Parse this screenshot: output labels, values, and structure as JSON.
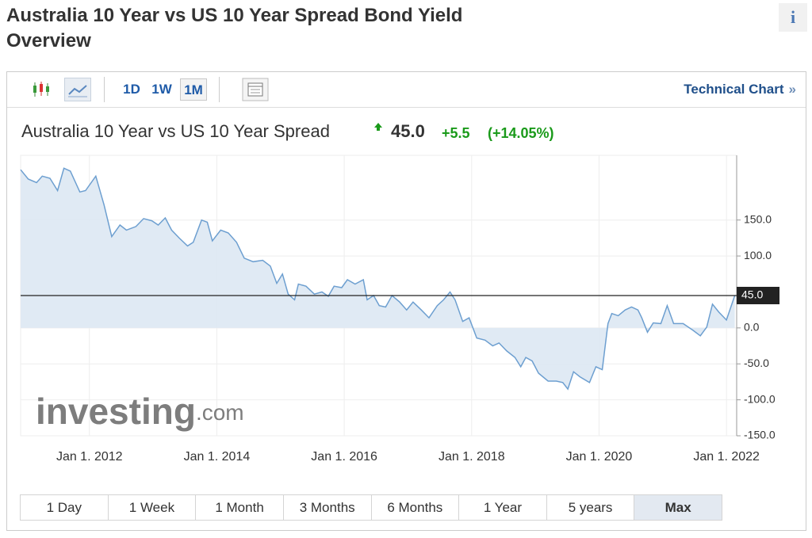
{
  "header": {
    "title": "Australia 10 Year vs US 10 Year Spread Bond Yield Overview",
    "info": "i"
  },
  "toolbar": {
    "intervals": [
      "1D",
      "1W",
      "1M"
    ],
    "active_interval": 2,
    "link": "Technical Chart",
    "link_arrow": "»"
  },
  "quote": {
    "name": "Australia 10 Year vs US 10 Year Spread",
    "price": "45.0",
    "change": "+5.5",
    "change_percent": "(+14.05%)"
  },
  "chart_data": {
    "type": "area",
    "x": [
      2010.92,
      2011.04,
      2011.17,
      2011.26,
      2011.38,
      2011.5,
      2011.6,
      2011.7,
      2011.85,
      2011.94,
      2012.1,
      2012.23,
      2012.35,
      2012.48,
      2012.58,
      2012.73,
      2012.85,
      2012.98,
      2013.08,
      2013.19,
      2013.29,
      2013.41,
      2013.54,
      2013.63,
      2013.76,
      2013.85,
      2013.93,
      2014.06,
      2014.18,
      2014.31,
      2014.43,
      2014.57,
      2014.72,
      2014.84,
      2014.94,
      2015.03,
      2015.12,
      2015.22,
      2015.28,
      2015.4,
      2015.53,
      2015.65,
      2015.75,
      2015.84,
      2015.96,
      2016.05,
      2016.17,
      2016.3,
      2016.36,
      2016.46,
      2016.55,
      2016.65,
      2016.75,
      2016.87,
      2016.98,
      2017.08,
      2017.21,
      2017.33,
      2017.46,
      2017.56,
      2017.66,
      2017.74,
      2017.86,
      2017.96,
      2018.08,
      2018.21,
      2018.33,
      2018.43,
      2018.55,
      2018.68,
      2018.77,
      2018.85,
      2018.95,
      2019.05,
      2019.2,
      2019.33,
      2019.43,
      2019.51,
      2019.6,
      2019.7,
      2019.85,
      2019.95,
      2020.05,
      2020.14,
      2020.2,
      2020.3,
      2020.41,
      2020.51,
      2020.61,
      2020.67,
      2020.76,
      2020.85,
      2020.97,
      2021.07,
      2021.17,
      2021.32,
      2021.47,
      2021.59,
      2021.69,
      2021.78,
      2021.88,
      2022.0,
      2022.13
    ],
    "values": [
      220,
      207,
      202,
      211,
      208,
      191,
      222,
      218,
      189,
      191,
      211,
      171,
      127,
      143,
      136,
      141,
      152,
      149,
      143,
      153,
      136,
      125,
      114,
      119,
      150,
      147,
      121,
      136,
      132,
      119,
      97,
      92,
      94,
      86,
      62,
      75,
      47,
      39,
      61,
      58,
      47,
      50,
      44,
      58,
      56,
      67,
      61,
      67,
      39,
      45,
      31,
      29,
      45,
      36,
      25,
      36,
      25,
      14,
      31,
      39,
      50,
      39,
      9,
      14,
      -14,
      -17,
      -25,
      -21,
      -32,
      -41,
      -54,
      -41,
      -46,
      -63,
      -74,
      -74,
      -76,
      -85,
      -61,
      -68,
      -76,
      -54,
      -58,
      6,
      20,
      17,
      25,
      29,
      25,
      14,
      -6,
      7,
      6,
      31,
      6,
      6,
      -3,
      -11,
      1,
      33,
      22,
      11,
      45
    ],
    "color": "#6d9fd0",
    "fill": "#dde8f3",
    "xlim": [
      2010.92,
      2022.16
    ],
    "ylim": [
      -150,
      240
    ],
    "xticks": [
      {
        "value": 2012,
        "label": "Jan 1, 2012"
      },
      {
        "value": 2014,
        "label": "Jan 1, 2014"
      },
      {
        "value": 2016,
        "label": "Jan 1, 2016"
      },
      {
        "value": 2018,
        "label": "Jan 1, 2018"
      },
      {
        "value": 2020,
        "label": "Jan 1, 2020"
      },
      {
        "value": 2022,
        "label": "Jan 1, 2022"
      }
    ],
    "yticks": [
      {
        "value": -150,
        "label": "-150.0"
      },
      {
        "value": -100,
        "label": "-100.0"
      },
      {
        "value": -50,
        "label": "-50.0"
      },
      {
        "value": 0,
        "label": "0.0"
      },
      {
        "value": 100,
        "label": "100.0"
      },
      {
        "value": 150,
        "label": "150.0"
      }
    ],
    "current_value": {
      "value": 45,
      "label": "45.0"
    },
    "grid": true
  },
  "watermark": [
    "investing",
    ".com"
  ],
  "ranges": [
    "1 Day",
    "1 Week",
    "1 Month",
    "3 Months",
    "6 Months",
    "1 Year",
    "5 years",
    "Max"
  ],
  "active_range": 7
}
